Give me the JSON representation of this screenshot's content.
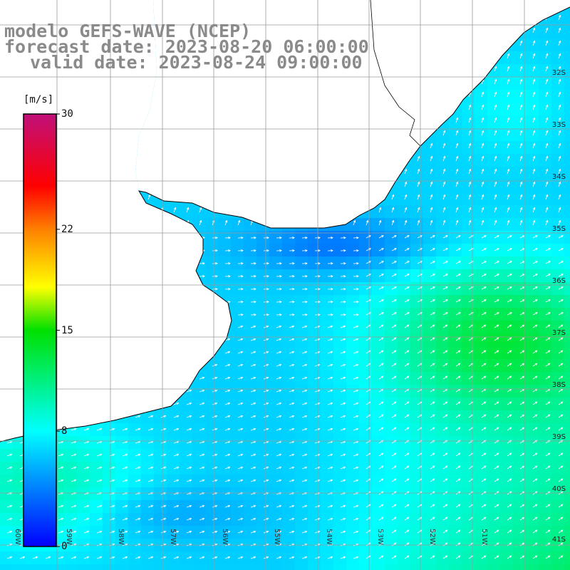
{
  "header": {
    "line1": "modelo GEFS-WAVE (NCEP)",
    "line2": "forecast date: 2023-08-20 06:00:00",
    "line3": "valid date: 2023-08-24 09:00:00"
  },
  "colorbar": {
    "unit": "[m/s]",
    "ticks": [
      "30",
      "22",
      "15",
      "8",
      "0"
    ],
    "tick_values": [
      30,
      22,
      15,
      8,
      0
    ],
    "stops": [
      {
        "v": 0,
        "c": "#0000ff"
      },
      {
        "v": 8,
        "c": "#00ffff"
      },
      {
        "v": 15,
        "c": "#00e000"
      },
      {
        "v": 18,
        "c": "#ffff00"
      },
      {
        "v": 22,
        "c": "#ff8000"
      },
      {
        "v": 25,
        "c": "#ff0000"
      },
      {
        "v": 30,
        "c": "#c0107a"
      }
    ]
  },
  "axes": {
    "lat_labels": [
      "32S",
      "33S",
      "34S",
      "35S",
      "36S",
      "37S",
      "38S",
      "39S",
      "40S",
      "41S"
    ],
    "lon_labels": [
      "60W",
      "59W",
      "58W",
      "57W",
      "56W",
      "55W",
      "54W",
      "53W",
      "52W",
      "51W"
    ]
  },
  "colors": {
    "land": "#ffffff",
    "coast": "#000000",
    "grid": "#9a9a9a",
    "title": "#8a8a8a"
  }
}
